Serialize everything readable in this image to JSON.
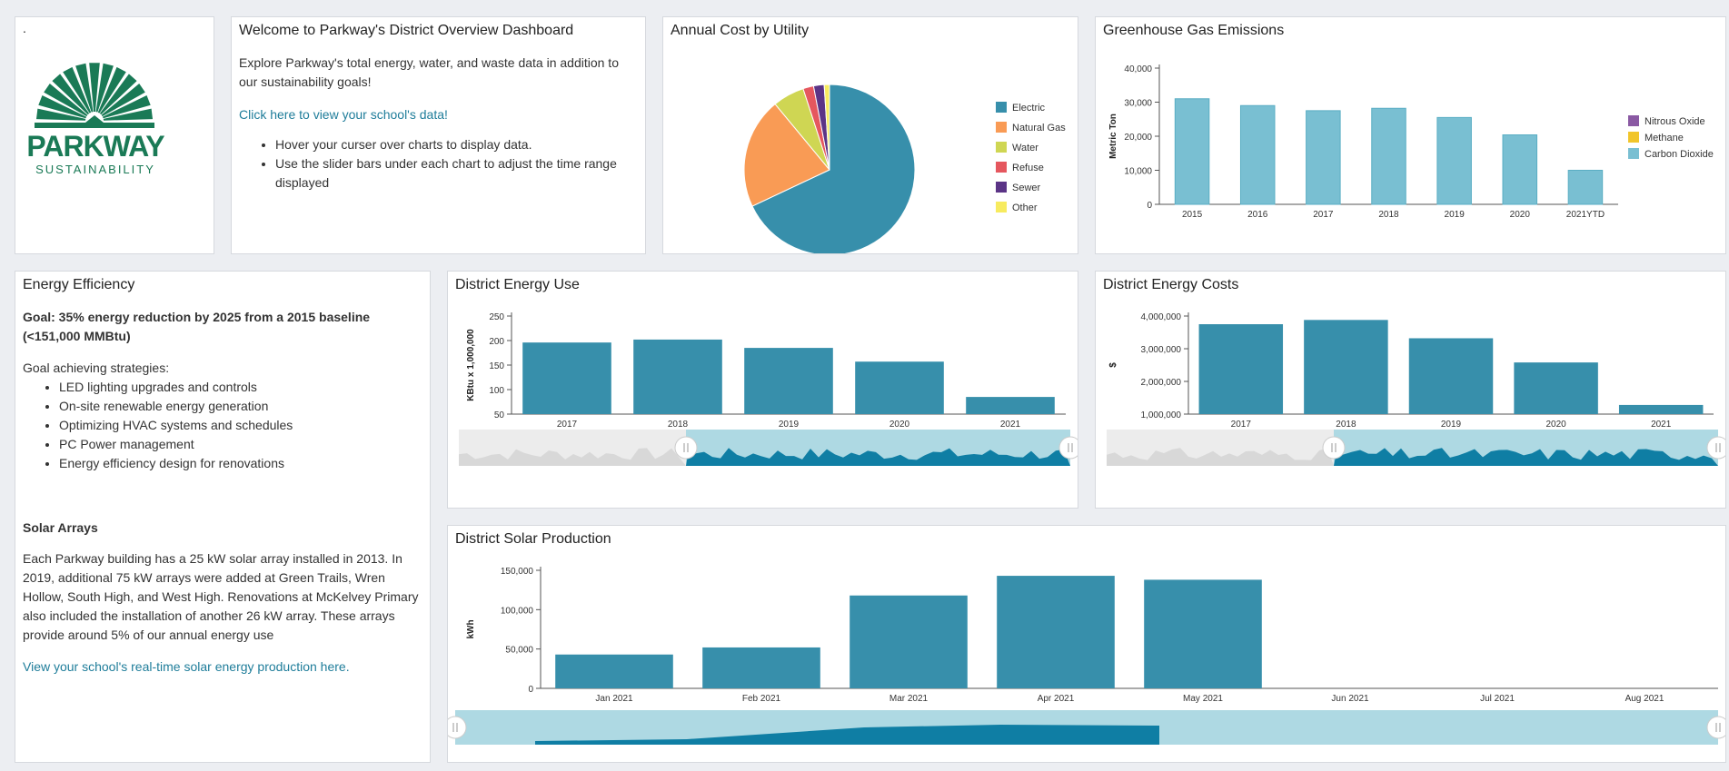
{
  "colors": {
    "bar": "#378fab",
    "ghg_bar": "#79bfd2",
    "electric": "#378fab",
    "natural_gas": "#f99b55",
    "water": "#cfd653",
    "refuse": "#e5575e",
    "sewer": "#5b3486",
    "other": "#f7eb5f",
    "nitrous": "#8a59a3",
    "methane": "#f1c52b",
    "navigator_bg": "#aed9e3",
    "navigator_fill": "#0f7ea4"
  },
  "logo": {
    "dot": ".",
    "title": "PARKWAY",
    "subtitle": "SUSTAINABILITY",
    "icon": "sunburst-logo-icon"
  },
  "welcome": {
    "title": "Welcome to Parkway's District Overview Dashboard",
    "intro": "Explore Parkway's total energy, water, and waste data in addition to our sustainability goals!",
    "link": "Click here to view your school's data!",
    "bullets": [
      "Hover your curser over charts to display data.",
      "Use the slider bars under each chart to adjust the time range displayed"
    ]
  },
  "efficiency": {
    "title": "Energy Efficiency",
    "goal": "Goal: 35% energy reduction by 2025 from a 2015 baseline (<151,000 MMBtu)",
    "strategies_heading": "Goal achieving strategies:",
    "strategies": [
      "LED lighting upgrades and controls",
      "On-site renewable energy generation",
      "Optimizing HVAC systems and schedules",
      "PC Power management",
      "Energy efficiency design for renovations"
    ],
    "solar_heading": "Solar Arrays",
    "solar_text": "Each Parkway building has a 25 kW solar array installed in 2013. In 2019, additional 75 kW arrays were added at Green Trails, Wren Hollow, South High, and West High. Renovations at McKelvey Primary also included the installation of another 26 kW array. These arrays provide around 5% of our annual energy use",
    "solar_link": "View your school's real-time solar energy production here."
  },
  "chart_data": [
    {
      "id": "cost_by_utility",
      "type": "pie",
      "title": "Annual Cost by Utility",
      "categories": [
        "Electric",
        "Natural Gas",
        "Water",
        "Refuse",
        "Sewer",
        "Other"
      ],
      "values": [
        68,
        21,
        6,
        2,
        2,
        1
      ],
      "legend": "right"
    },
    {
      "id": "ghg",
      "type": "bar",
      "title": "Greenhouse Gas Emissions",
      "categories": [
        "2015",
        "2016",
        "2017",
        "2018",
        "2019",
        "2020",
        "2021YTD"
      ],
      "series": [
        {
          "name": "Nitrous Oxide",
          "values": [
            0,
            0,
            0,
            0,
            0,
            0,
            0
          ]
        },
        {
          "name": "Methane",
          "values": [
            0,
            0,
            0,
            0,
            0,
            0,
            0
          ]
        },
        {
          "name": "Carbon Dioxide",
          "values": [
            31000,
            29000,
            27500,
            28200,
            25500,
            20400,
            10000
          ]
        }
      ],
      "ylabel": "Metric Ton",
      "ylim": [
        0,
        40000
      ],
      "yticks": [
        "0",
        "10,000",
        "20,000",
        "30,000",
        "40,000"
      ],
      "legend": "right"
    },
    {
      "id": "energy_use",
      "type": "bar",
      "title": "District Energy Use",
      "categories": [
        "2017",
        "2018",
        "2019",
        "2020",
        "2021"
      ],
      "values": [
        196,
        202,
        185,
        157,
        85
      ],
      "ylabel": "KBtu x 1,000,000",
      "ylim": [
        50,
        250
      ],
      "yticks": [
        "50",
        "100",
        "150",
        "200",
        "250"
      ]
    },
    {
      "id": "energy_costs",
      "type": "bar",
      "title": "District Energy Costs",
      "categories": [
        "2017",
        "2018",
        "2019",
        "2020",
        "2021"
      ],
      "values": [
        3750000,
        3880000,
        3320000,
        2580000,
        1280000
      ],
      "ylabel": "$",
      "ylim": [
        1000000,
        4000000
      ],
      "yticks": [
        "1,000,000",
        "2,000,000",
        "3,000,000",
        "4,000,000"
      ]
    },
    {
      "id": "solar",
      "type": "bar",
      "title": "District Solar Production",
      "categories": [
        "Jan 2021",
        "Feb 2021",
        "Mar 2021",
        "Apr 2021",
        "May 2021",
        "Jun 2021",
        "Jul 2021",
        "Aug 2021"
      ],
      "values": [
        43000,
        52000,
        118000,
        143000,
        138000,
        null,
        null,
        null
      ],
      "ylabel": "kWh",
      "ylim": [
        0,
        150000
      ],
      "yticks": [
        "0",
        "50,000",
        "100,000",
        "150,000"
      ]
    }
  ]
}
